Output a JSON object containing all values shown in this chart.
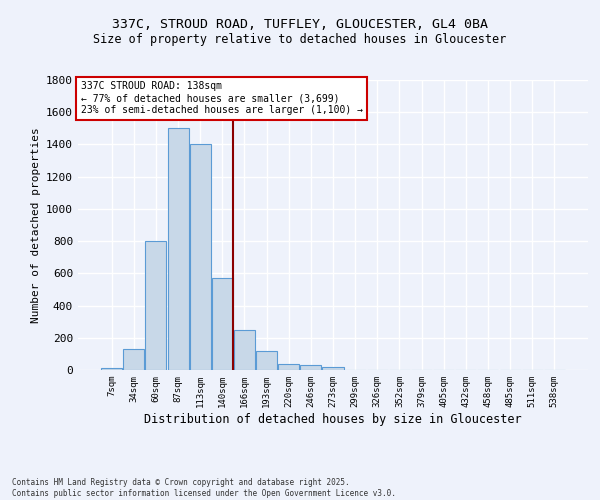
{
  "title_line1": "337C, STROUD ROAD, TUFFLEY, GLOUCESTER, GL4 0BA",
  "title_line2": "Size of property relative to detached houses in Gloucester",
  "xlabel": "Distribution of detached houses by size in Gloucester",
  "ylabel": "Number of detached properties",
  "categories": [
    "7sqm",
    "34sqm",
    "60sqm",
    "87sqm",
    "113sqm",
    "140sqm",
    "166sqm",
    "193sqm",
    "220sqm",
    "246sqm",
    "273sqm",
    "299sqm",
    "326sqm",
    "352sqm",
    "379sqm",
    "405sqm",
    "432sqm",
    "458sqm",
    "485sqm",
    "511sqm",
    "538sqm"
  ],
  "values": [
    10,
    130,
    800,
    1500,
    1400,
    570,
    250,
    120,
    35,
    30,
    20,
    0,
    0,
    0,
    0,
    0,
    0,
    0,
    0,
    0,
    0
  ],
  "bar_color": "#c8d8e8",
  "bar_edge_color": "#5b9bd5",
  "vline_x_index": 5,
  "vline_color": "#8b0000",
  "annotation_text": "337C STROUD ROAD: 138sqm\n← 77% of detached houses are smaller (3,699)\n23% of semi-detached houses are larger (1,100) →",
  "annotation_box_color": "#ffffff",
  "annotation_box_edge": "#cc0000",
  "annotation_fontsize": 7,
  "ylim": [
    0,
    1800
  ],
  "yticks": [
    0,
    200,
    400,
    600,
    800,
    1000,
    1200,
    1400,
    1600,
    1800
  ],
  "background_color": "#eef2fb",
  "grid_color": "#ffffff",
  "title_fontsize": 9.5,
  "subtitle_fontsize": 8.5,
  "footnote": "Contains HM Land Registry data © Crown copyright and database right 2025.\nContains public sector information licensed under the Open Government Licence v3.0."
}
